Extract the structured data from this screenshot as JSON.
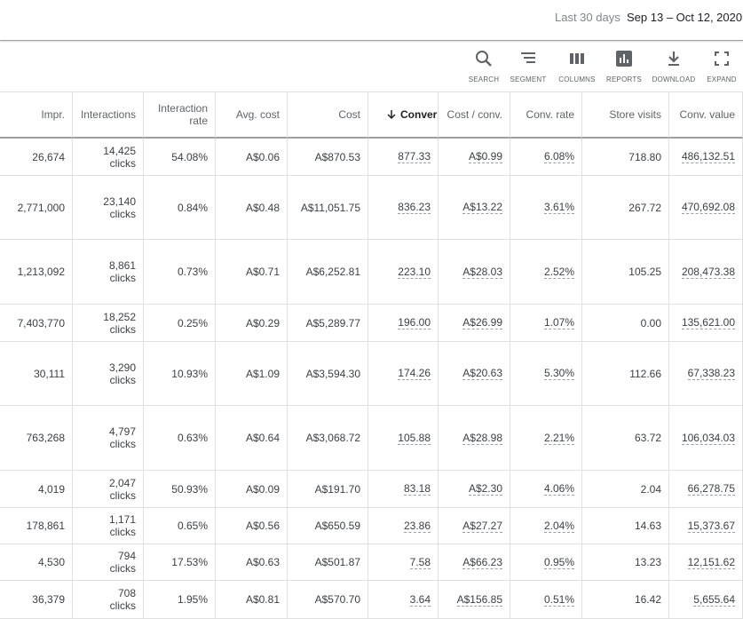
{
  "header": {
    "range_label": "Last 30 days",
    "range": "Sep 13 – Oct 12, 2020"
  },
  "toolbar": [
    "SEARCH",
    "SEGMENT",
    "COLUMNS",
    "REPORTS",
    "DOWNLOAD",
    "EXPAND"
  ],
  "table": {
    "columns": [
      "Impr.",
      "Interactions",
      "Interaction rate",
      "Avg. cost",
      "Cost",
      "Conversions",
      "Cost / conv.",
      "Conv. rate",
      "Store visits",
      "Conv. value"
    ],
    "rows": [
      [
        "26,674",
        [
          "14,425",
          "clicks"
        ],
        "54.08%",
        "A$0.06",
        "A$870.53",
        "877.33",
        "A$0.99",
        "6.08%",
        "718.80",
        "486,132.51"
      ],
      [
        "2,771,000",
        [
          "23,140",
          "clicks"
        ],
        "0.84%",
        "A$0.48",
        "A$11,051.75",
        "836.23",
        "A$13.22",
        "3.61%",
        "267.72",
        "470,692.08"
      ],
      [
        "1,213,092",
        [
          "8,861",
          "clicks"
        ],
        "0.73%",
        "A$0.71",
        "A$6,252.81",
        "223.10",
        "A$28.03",
        "2.52%",
        "105.25",
        "208,473.38"
      ],
      [
        "7,403,770",
        [
          "18,252",
          "clicks"
        ],
        "0.25%",
        "A$0.29",
        "A$5,289.77",
        "196.00",
        "A$26.99",
        "1.07%",
        "0.00",
        "135,621.00"
      ],
      [
        "30,111",
        [
          "3,290",
          "clicks"
        ],
        "10.93%",
        "A$1.09",
        "A$3,594.30",
        "174.26",
        "A$20.63",
        "5.30%",
        "112.66",
        "67,338.23"
      ],
      [
        "763,268",
        [
          "4,797",
          "clicks"
        ],
        "0.63%",
        "A$0.64",
        "A$3,068.72",
        "105.88",
        "A$28.98",
        "2.21%",
        "63.72",
        "106,034.03"
      ],
      [
        "4,019",
        [
          "2,047",
          "clicks"
        ],
        "50.93%",
        "A$0.09",
        "A$191.70",
        "83.18",
        "A$2.30",
        "4.06%",
        "2.04",
        "66,278.75"
      ],
      [
        "178,861",
        [
          "1,171",
          "clicks"
        ],
        "0.65%",
        "A$0.56",
        "A$650.59",
        "23.86",
        "A$27.27",
        "2.04%",
        "14.63",
        "15,373.67"
      ],
      [
        "4,530",
        [
          "794",
          "clicks"
        ],
        "17.53%",
        "A$0.63",
        "A$501.87",
        "7.58",
        "A$66.23",
        "0.95%",
        "13.23",
        "12,151.62"
      ],
      [
        "36,379",
        [
          "708",
          "clicks"
        ],
        "1.95%",
        "A$0.81",
        "A$570.70",
        "3.64",
        "A$156.85",
        "0.51%",
        "16.42",
        "5,655.64"
      ]
    ]
  }
}
